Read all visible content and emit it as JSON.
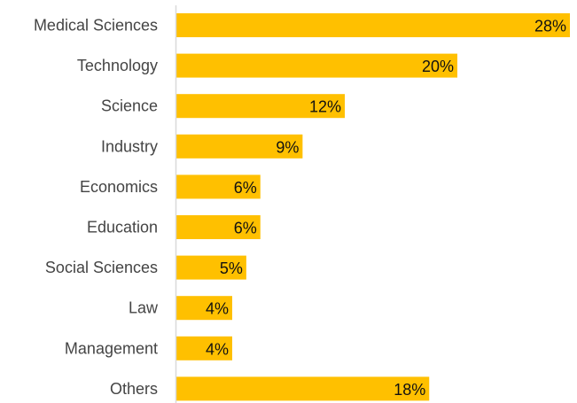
{
  "chart_data": {
    "type": "bar",
    "orientation": "horizontal",
    "categories": [
      "Medical Sciences",
      "Technology",
      "Science",
      "Industry",
      "Economics",
      "Education",
      "Social Sciences",
      "Law",
      "Management",
      "Others"
    ],
    "values": [
      28,
      20,
      12,
      9,
      6,
      6,
      5,
      4,
      4,
      18
    ],
    "data_labels": [
      "28%",
      "20%",
      "12%",
      "9%",
      "6%",
      "6%",
      "5%",
      "4%",
      "4%",
      "18%"
    ],
    "unit": "%",
    "title": "",
    "xlabel": "",
    "ylabel": "",
    "xlim": [
      0,
      28
    ],
    "grid": false,
    "legend": "none",
    "bar_color": "#FFC000",
    "axis_color": "#D9D9D9"
  }
}
